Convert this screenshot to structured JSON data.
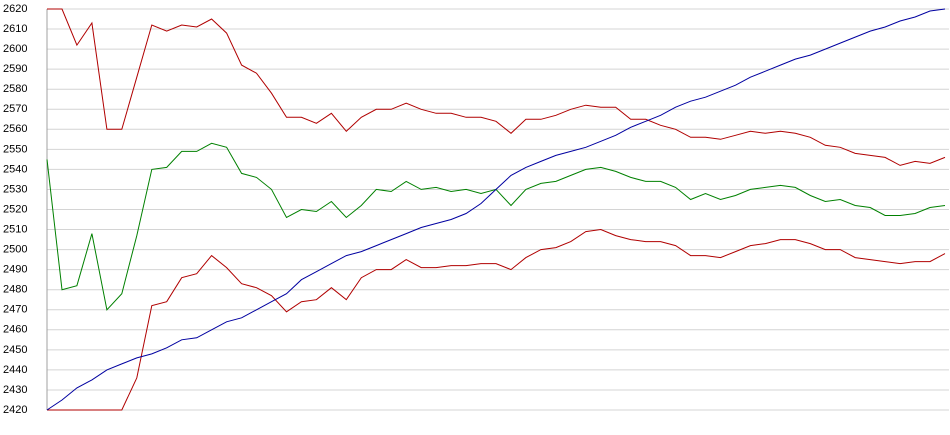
{
  "chart_data": {
    "type": "line",
    "ylim": [
      2420,
      2620
    ],
    "yticks": [
      2420,
      2430,
      2440,
      2450,
      2460,
      2470,
      2480,
      2490,
      2500,
      2510,
      2520,
      2530,
      2540,
      2550,
      2560,
      2570,
      2580,
      2590,
      2600,
      2610,
      2620
    ],
    "grid": true,
    "series": [
      {
        "color": "#b00000",
        "values": [
          2620,
          2620,
          2602,
          2613,
          2560,
          2560,
          2586,
          2612,
          2609,
          2612,
          2611,
          2615,
          2608,
          2592,
          2588,
          2578,
          2566,
          2566,
          2563,
          2568,
          2559,
          2566,
          2570,
          2570,
          2573,
          2570,
          2568,
          2568,
          2566,
          2566,
          2564,
          2558,
          2565,
          2565,
          2567,
          2570,
          2572,
          2571,
          2571,
          2565,
          2565,
          2562,
          2560,
          2556,
          2556,
          2555,
          2557,
          2559,
          2558,
          2559,
          2558,
          2556,
          2552,
          2551,
          2548,
          2547,
          2546,
          2542,
          2544,
          2543,
          2546
        ]
      },
      {
        "color": "#008000",
        "values": [
          2545,
          2480,
          2482,
          2508,
          2470,
          2478,
          2507,
          2540,
          2541,
          2549,
          2549,
          2553,
          2551,
          2538,
          2536,
          2530,
          2516,
          2520,
          2519,
          2524,
          2516,
          2522,
          2530,
          2529,
          2534,
          2530,
          2531,
          2529,
          2530,
          2528,
          2530,
          2522,
          2530,
          2533,
          2534,
          2537,
          2540,
          2541,
          2539,
          2536,
          2534,
          2534,
          2531,
          2525,
          2528,
          2525,
          2527,
          2530,
          2531,
          2532,
          2531,
          2527,
          2524,
          2525,
          2522,
          2521,
          2517,
          2517,
          2518,
          2521,
          2522
        ]
      },
      {
        "color": "#b00000",
        "values": [
          2420,
          2420,
          2420,
          2420,
          2420,
          2420,
          2436,
          2472,
          2474,
          2486,
          2488,
          2497,
          2491,
          2483,
          2481,
          2477,
          2469,
          2474,
          2475,
          2481,
          2475,
          2486,
          2490,
          2490,
          2495,
          2491,
          2491,
          2492,
          2492,
          2493,
          2493,
          2490,
          2496,
          2500,
          2501,
          2504,
          2509,
          2510,
          2507,
          2505,
          2504,
          2504,
          2502,
          2497,
          2497,
          2496,
          2499,
          2502,
          2503,
          2505,
          2505,
          2503,
          2500,
          2500,
          2496,
          2495,
          2494,
          2493,
          2494,
          2494,
          2498
        ]
      },
      {
        "color": "#0000a0",
        "values": [
          2420,
          2425,
          2431,
          2435,
          2440,
          2443,
          2446,
          2448,
          2451,
          2455,
          2456,
          2460,
          2464,
          2466,
          2470,
          2474,
          2478,
          2485,
          2489,
          2493,
          2497,
          2499,
          2502,
          2505,
          2508,
          2511,
          2513,
          2515,
          2518,
          2523,
          2530,
          2537,
          2541,
          2544,
          2547,
          2549,
          2551,
          2554,
          2557,
          2561,
          2564,
          2567,
          2571,
          2574,
          2576,
          2579,
          2582,
          2586,
          2589,
          2592,
          2595,
          2597,
          2600,
          2603,
          2606,
          2609,
          2611,
          2614,
          2616,
          2619,
          2620
        ]
      }
    ]
  }
}
